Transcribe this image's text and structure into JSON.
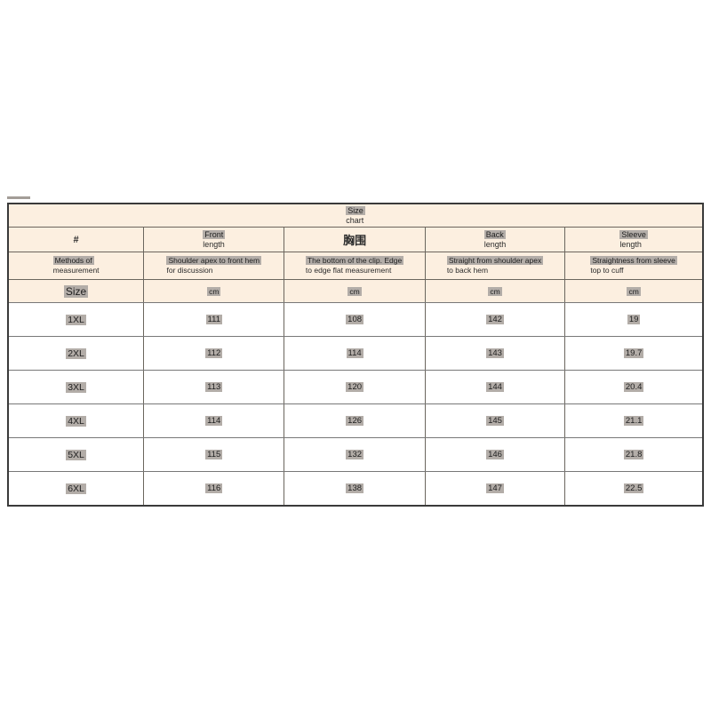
{
  "colors": {
    "header_background": "#fcefe0",
    "highlight_background": "#b3ada8",
    "inner_border": "#6b665e",
    "outer_border": "#3a3a3a",
    "page_background": "#ffffff"
  },
  "table": {
    "title_line1": "Size",
    "title_line2": "chart",
    "headers": [
      {
        "line1": "#",
        "line2": ""
      },
      {
        "line1": "Front",
        "line2": "length"
      },
      {
        "line1": "胸围",
        "line2": ""
      },
      {
        "line1": "Back",
        "line2": "length"
      },
      {
        "line1": "Sleeve",
        "line2": "length"
      }
    ],
    "methods": [
      {
        "line1": "Methods of",
        "line2": "measurement"
      },
      {
        "line1": "Shoulder apex to front hem",
        "line2": "for discussion"
      },
      {
        "line1": "The bottom of the clip. Edge",
        "line2": "to edge flat measurement"
      },
      {
        "line1": "Straight from shoulder apex",
        "line2": "to back hem"
      },
      {
        "line1": "Straightness from sleeve",
        "line2": "top to cuff"
      }
    ],
    "units": [
      "Size",
      "cm",
      "cm",
      "cm",
      "cm"
    ]
  },
  "chart_data": {
    "type": "table",
    "title": "Size chart",
    "columns": [
      "Size",
      "Front length",
      "胸围",
      "Back length",
      "Sleeve length"
    ],
    "units_row": [
      "Size",
      "cm",
      "cm",
      "cm",
      "cm"
    ],
    "rows": [
      [
        "1XL",
        "111",
        "108",
        "142",
        "19"
      ],
      [
        "2XL",
        "112",
        "114",
        "143",
        "19.7"
      ],
      [
        "3XL",
        "113",
        "120",
        "144",
        "20.4"
      ],
      [
        "4XL",
        "114",
        "126",
        "145",
        "21.1"
      ],
      [
        "5XL",
        "115",
        "132",
        "146",
        "21.8"
      ],
      [
        "6XL",
        "116",
        "138",
        "147",
        "22.5"
      ]
    ]
  }
}
